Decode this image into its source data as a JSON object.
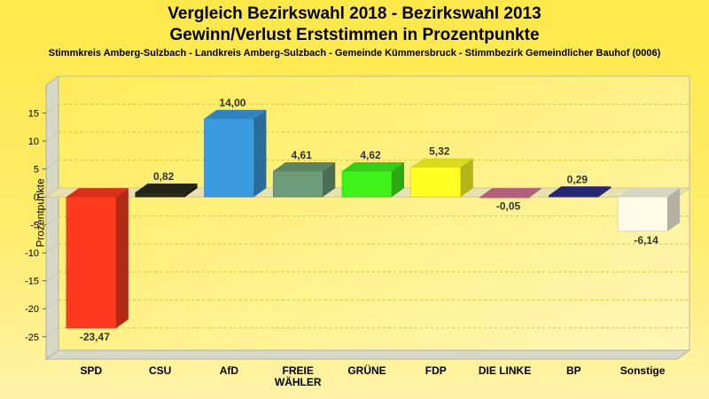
{
  "chart_data": {
    "type": "bar",
    "title": "Vergleich Bezirkswahl 2018 - Bezirkswahl 2013",
    "subtitle": "Gewinn/Verlust Erststimmen in Prozentpunkte",
    "caption": "Stimmkreis Amberg-Sulzbach - Landkreis Amberg-Sulzbach - Gemeinde Kümmersbruck - Stimmbezirk Gemeindlicher Bauhof (0006)",
    "ylabel": "Prozentpunkte",
    "xlabel": "",
    "ylim": [
      -29,
      20
    ],
    "yticks": [
      -25,
      -20,
      -15,
      -10,
      -5,
      0,
      5,
      10,
      15
    ],
    "grid": true,
    "categories": [
      [
        "SPD"
      ],
      [
        "CSU"
      ],
      [
        "AfD"
      ],
      [
        "FREIE",
        "WÄHLER"
      ],
      [
        "GRÜNE"
      ],
      [
        "FDP"
      ],
      [
        "DIE LINKE"
      ],
      [
        "BP"
      ],
      [
        "Sonstige"
      ]
    ],
    "values": [
      -23.47,
      0.82,
      14.0,
      4.61,
      4.62,
      5.32,
      -0.05,
      0.29,
      -6.14
    ],
    "value_labels": [
      "-23,47",
      "0,82",
      "14,00",
      "4,61",
      "4,62",
      "5,32",
      "-0,05",
      "0,29",
      "-6,14"
    ],
    "colors": [
      "#ff3a1e",
      "#2a2a1a",
      "#3a9be0",
      "#6e9b78",
      "#3ef21a",
      "#ffff22",
      "#d07090",
      "#2c2c88",
      "#fffbe8"
    ]
  }
}
